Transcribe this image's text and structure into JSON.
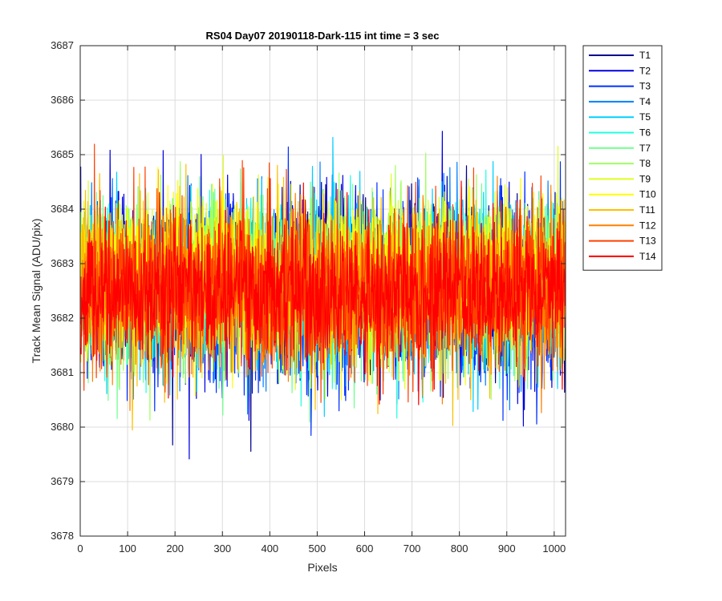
{
  "chart_data": {
    "type": "line",
    "title": "RS04 Day07 20190118-Dark-115 int time = 3 sec",
    "xlabel": "Pixels",
    "ylabel": "Track Mean Signal (ADU/pix)",
    "xlim": [
      0,
      1024
    ],
    "ylim": [
      3678,
      3687
    ],
    "xticks": [
      0,
      100,
      200,
      300,
      400,
      500,
      600,
      700,
      800,
      900,
      1000
    ],
    "yticks": [
      3678,
      3679,
      3680,
      3681,
      3682,
      3683,
      3684,
      3685,
      3686,
      3687
    ],
    "grid": true,
    "legend_position": "outside-top-right",
    "series": [
      {
        "name": "T1",
        "color": "#00008f",
        "mean": 3682.7,
        "spread": 1.0
      },
      {
        "name": "T2",
        "color": "#0000df",
        "mean": 3682.6,
        "spread": 1.1
      },
      {
        "name": "T3",
        "color": "#0030ff",
        "mean": 3682.5,
        "spread": 1.1
      },
      {
        "name": "T4",
        "color": "#0080ff",
        "mean": 3682.6,
        "spread": 1.05
      },
      {
        "name": "T5",
        "color": "#00cfff",
        "mean": 3682.6,
        "spread": 1.0
      },
      {
        "name": "T6",
        "color": "#20ffdf",
        "mean": 3682.6,
        "spread": 0.95
      },
      {
        "name": "T7",
        "color": "#70ff8f",
        "mean": 3682.6,
        "spread": 0.95
      },
      {
        "name": "T8",
        "color": "#a0ff60",
        "mean": 3682.7,
        "spread": 0.95
      },
      {
        "name": "T9",
        "color": "#dfff20",
        "mean": 3682.8,
        "spread": 0.95
      },
      {
        "name": "T10",
        "color": "#ffff00",
        "mean": 3682.8,
        "spread": 0.95
      },
      {
        "name": "T11",
        "color": "#ffbf00",
        "mean": 3682.6,
        "spread": 1.0
      },
      {
        "name": "T12",
        "color": "#ff8000",
        "mean": 3682.5,
        "spread": 1.0
      },
      {
        "name": "T13",
        "color": "#ff4000",
        "mean": 3682.5,
        "spread": 0.95
      },
      {
        "name": "T14",
        "color": "#ff0000",
        "mean": 3682.5,
        "spread": 0.85
      }
    ]
  }
}
